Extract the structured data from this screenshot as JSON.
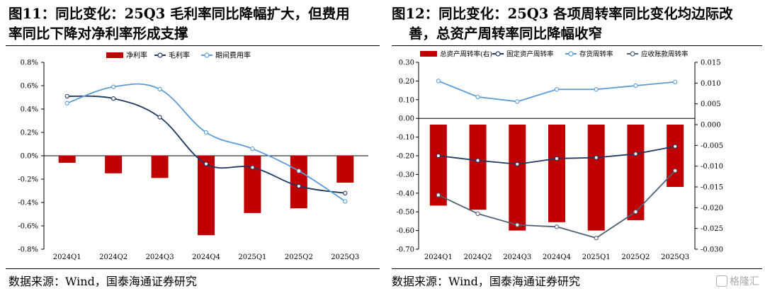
{
  "left": {
    "title_line1": "图11：同比变化：25Q3 毛利率同比降幅扩大，但费用",
    "title_line2": "率同比下降对净利率形成支撑",
    "source": "数据来源：Wind，国泰海通证券研究",
    "chart_data": {
      "type": "bar+line",
      "categories": [
        "2024Q1",
        "2024Q2",
        "2024Q3",
        "2024Q4",
        "2025Q1",
        "2025Q2",
        "2025Q3"
      ],
      "ylim": [
        -0.8,
        0.8
      ],
      "yticks": [
        "0.8%",
        "0.6%",
        "0.4%",
        "0.2%",
        "0.0%",
        "-0.2%",
        "-0.4%",
        "-0.6%",
        "-0.8%"
      ],
      "series": [
        {
          "name": "净利率",
          "kind": "bar",
          "color": "#c00000",
          "values": [
            -0.06,
            -0.15,
            -0.19,
            -0.68,
            -0.49,
            -0.45,
            -0.23
          ]
        },
        {
          "name": "毛利率",
          "kind": "line",
          "color": "#1f3864",
          "values": [
            0.51,
            0.49,
            0.33,
            -0.07,
            -0.1,
            -0.26,
            -0.32
          ]
        },
        {
          "name": "期间费用率",
          "kind": "line",
          "color": "#5b9bd5",
          "values": [
            0.45,
            0.59,
            0.57,
            0.2,
            0.06,
            -0.13,
            -0.39
          ]
        }
      ]
    }
  },
  "right": {
    "title_line1": "图12：同比变化：25Q3 各项周转率同比变化均边际改",
    "title_line2": "善，总资产周转率同比降幅收窄",
    "source": "数据来源：Wind，国泰海通证券研究",
    "watermark": "格隆汇",
    "chart_data": {
      "type": "bar+line",
      "categories": [
        "2024Q1",
        "2024Q2",
        "2024Q3",
        "2024Q4",
        "2025Q1",
        "2025Q2",
        "2025Q3"
      ],
      "ylim_left": [
        -0.7,
        0.3
      ],
      "ylim_right": [
        -0.03,
        0.015
      ],
      "yticks_left": [
        "0.30",
        "0.20",
        "0.10",
        "0.00",
        "-0.10",
        "-0.20",
        "-0.30",
        "-0.40",
        "-0.50",
        "-0.60",
        "-0.70"
      ],
      "yticks_right": [
        "0.015",
        "0.010",
        "0.005",
        "0.000",
        "-0.005",
        "-0.010",
        "-0.015",
        "-0.020",
        "-0.025",
        "-0.030"
      ],
      "series": [
        {
          "name": "总资产周转率(右)",
          "kind": "bar",
          "axis": "right",
          "color": "#c00000",
          "values": [
            -0.0195,
            -0.0205,
            -0.0255,
            -0.0235,
            -0.0255,
            -0.023,
            -0.015
          ]
        },
        {
          "name": "固定资产周转率",
          "kind": "line",
          "axis": "left",
          "color": "#1f3864",
          "values": [
            -0.2,
            -0.225,
            -0.245,
            -0.215,
            -0.21,
            -0.19,
            -0.15
          ]
        },
        {
          "name": "存货周转率",
          "kind": "line",
          "axis": "left",
          "color": "#5b9bd5",
          "values": [
            0.2,
            0.115,
            0.09,
            0.155,
            0.155,
            0.175,
            0.195
          ]
        },
        {
          "name": "应收账款周转率",
          "kind": "line",
          "axis": "left",
          "color": "#4f6278",
          "values": [
            -0.41,
            -0.51,
            -0.57,
            -0.58,
            -0.64,
            -0.5,
            -0.28
          ]
        }
      ]
    }
  }
}
